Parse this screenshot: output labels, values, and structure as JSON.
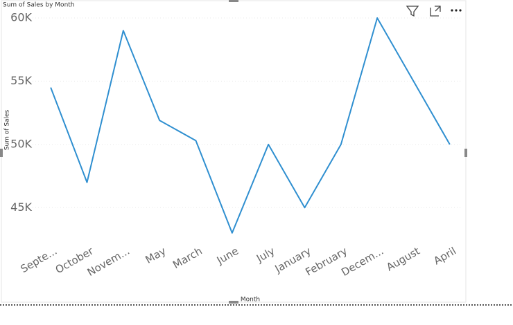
{
  "chart_data": {
    "type": "line",
    "title": "Sum of Sales by Month",
    "x_label": "Month",
    "y_label": "Sum of Sales",
    "categories": [
      "Septe...",
      "October",
      "Novem...",
      "May",
      "March",
      "June",
      "July",
      "January",
      "February",
      "Decem...",
      "August",
      "April"
    ],
    "series": [
      {
        "name": "Sum of Sales",
        "color": "#2f8fd0",
        "values": [
          54500,
          47000,
          59000,
          51900,
          50300,
          43000,
          50000,
          45000,
          50000,
          60000,
          55000,
          50000
        ]
      }
    ],
    "ylim": [
      42500,
      60000
    ],
    "yticks": [
      {
        "value": 45000,
        "label": "45K"
      },
      {
        "value": 50000,
        "label": "50K"
      },
      {
        "value": 55000,
        "label": "55K"
      },
      {
        "value": 60000,
        "label": "60K"
      }
    ],
    "grid": true
  }
}
